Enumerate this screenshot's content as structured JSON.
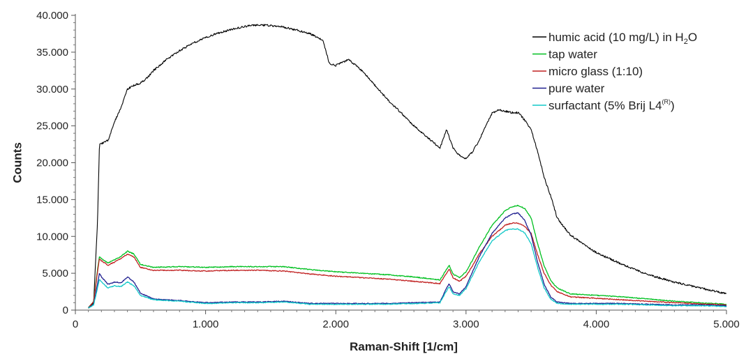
{
  "chart_data": {
    "type": "line",
    "xlabel": "Raman-Shift [1/cm]",
    "ylabel": "Counts",
    "xlim": [
      0,
      5000
    ],
    "ylim": [
      0,
      40000
    ],
    "x_ticks": [
      0,
      1000,
      2000,
      3000,
      4000,
      5000
    ],
    "x_tick_labels": [
      "0",
      "1.000",
      "2.000",
      "3.000",
      "4.000",
      "5.000"
    ],
    "y_ticks": [
      0,
      5000,
      10000,
      15000,
      20000,
      25000,
      30000,
      35000,
      40000
    ],
    "y_tick_labels": [
      "0",
      "5.000",
      "10.000",
      "15.000",
      "20.000",
      "25.000",
      "30.000",
      "35.000",
      "40.000"
    ],
    "grid": false,
    "legend_position": "top-right",
    "series": [
      {
        "name": "humic acid (10 mg/L) in H2O",
        "legend_main": "humic acid (10 mg/L) in H",
        "legend_sub": "2",
        "legend_tail": "O",
        "color": "#000000",
        "x": [
          100,
          140,
          170,
          185,
          200,
          250,
          300,
          350,
          400,
          450,
          500,
          550,
          600,
          700,
          800,
          900,
          1000,
          1100,
          1200,
          1300,
          1400,
          1500,
          1600,
          1700,
          1800,
          1900,
          1950,
          2000,
          2100,
          2200,
          2300,
          2400,
          2500,
          2600,
          2700,
          2800,
          2850,
          2880,
          2900,
          2950,
          3000,
          3050,
          3100,
          3150,
          3200,
          3250,
          3300,
          3350,
          3400,
          3450,
          3500,
          3550,
          3600,
          3650,
          3700,
          3800,
          3900,
          4000,
          4200,
          4400,
          4600,
          4800,
          5000
        ],
        "y": [
          300,
          1000,
          12000,
          22500,
          22600,
          23000,
          25500,
          27500,
          30000,
          30500,
          30800,
          31500,
          32500,
          34000,
          35200,
          36200,
          37000,
          37600,
          38100,
          38500,
          38700,
          38600,
          38400,
          38000,
          37500,
          36700,
          33500,
          33200,
          34000,
          32500,
          30500,
          28500,
          26800,
          25000,
          23500,
          22000,
          24500,
          23000,
          22000,
          21000,
          20500,
          21500,
          23000,
          25000,
          26700,
          27200,
          27000,
          26800,
          26800,
          25800,
          24500,
          21500,
          18000,
          15500,
          12500,
          10200,
          9000,
          7800,
          6200,
          4800,
          3800,
          3000,
          2200
        ]
      },
      {
        "name": "tap water",
        "legend_main": "tap water",
        "legend_sub": "",
        "legend_tail": "",
        "color": "#00c020",
        "x": [
          100,
          140,
          170,
          185,
          200,
          250,
          300,
          350,
          400,
          450,
          500,
          600,
          800,
          1000,
          1200,
          1400,
          1600,
          1800,
          2000,
          2200,
          2400,
          2600,
          2800,
          2850,
          2870,
          2900,
          2950,
          3000,
          3050,
          3100,
          3200,
          3300,
          3350,
          3400,
          3450,
          3500,
          3550,
          3600,
          3650,
          3700,
          3800,
          4000,
          4200,
          4400,
          4600,
          4800,
          5000
        ],
        "y": [
          300,
          1200,
          5500,
          7300,
          7000,
          6400,
          6800,
          7300,
          8000,
          7600,
          6200,
          5800,
          5900,
          5800,
          5900,
          5900,
          5900,
          5500,
          5200,
          5000,
          4800,
          4500,
          4100,
          5500,
          6100,
          4900,
          4400,
          5200,
          6800,
          8500,
          11500,
          13500,
          14000,
          14200,
          13800,
          12500,
          9000,
          6000,
          4000,
          3000,
          2200,
          2000,
          1800,
          1500,
          1200,
          1000,
          800
        ]
      },
      {
        "name": "micro glass (1:10)",
        "legend_main": "micro glass (1:10)",
        "legend_sub": "",
        "legend_tail": "",
        "color": "#c02020",
        "x": [
          100,
          140,
          170,
          185,
          200,
          250,
          300,
          350,
          400,
          450,
          500,
          600,
          800,
          1000,
          1200,
          1400,
          1600,
          1800,
          2000,
          2200,
          2400,
          2600,
          2800,
          2850,
          2870,
          2900,
          2950,
          3000,
          3050,
          3100,
          3200,
          3300,
          3350,
          3400,
          3450,
          3500,
          3550,
          3600,
          3650,
          3700,
          3800,
          4000,
          4200,
          4400,
          4600,
          4800,
          5000
        ],
        "y": [
          300,
          1100,
          5200,
          7000,
          6700,
          6100,
          6500,
          7000,
          7600,
          7200,
          5800,
          5400,
          5400,
          5300,
          5400,
          5400,
          5300,
          4900,
          4600,
          4400,
          4200,
          3900,
          3600,
          5000,
          5600,
          4400,
          3900,
          4600,
          6000,
          7600,
          10000,
          11500,
          11800,
          11800,
          11400,
          10400,
          7500,
          5000,
          3400,
          2500,
          1800,
          1600,
          1400,
          1200,
          1000,
          850,
          700
        ]
      },
      {
        "name": "pure water",
        "legend_main": "pure water",
        "legend_sub": "",
        "legend_tail": "",
        "color": "#202090",
        "x": [
          100,
          140,
          170,
          185,
          200,
          250,
          300,
          350,
          400,
          450,
          500,
          600,
          800,
          1000,
          1200,
          1400,
          1600,
          1800,
          2000,
          2200,
          2400,
          2600,
          2800,
          2850,
          2870,
          2900,
          2950,
          3000,
          3050,
          3100,
          3200,
          3300,
          3350,
          3400,
          3450,
          3500,
          3550,
          3600,
          3650,
          3700,
          3800,
          4000,
          4200,
          4400,
          4600,
          4800,
          5000
        ],
        "y": [
          300,
          800,
          3500,
          5000,
          4500,
          3500,
          3800,
          3700,
          4500,
          3800,
          2300,
          1500,
          1300,
          1000,
          1100,
          1100,
          1200,
          900,
          900,
          900,
          900,
          1000,
          1100,
          3000,
          3600,
          2500,
          2200,
          3200,
          5200,
          7200,
          10400,
          12500,
          13000,
          13200,
          12200,
          10200,
          6500,
          3500,
          1800,
          1100,
          900,
          900,
          900,
          800,
          700,
          700,
          600
        ]
      },
      {
        "name": "surfactant (5% Brij L4(R))",
        "legend_main": "surfactant (5% Brij L4",
        "legend_sub": "(R)",
        "legend_tail": ")",
        "color": "#10c8c8",
        "x": [
          100,
          140,
          170,
          185,
          200,
          250,
          300,
          350,
          400,
          450,
          500,
          600,
          800,
          1000,
          1200,
          1400,
          1600,
          1800,
          2000,
          2200,
          2400,
          2600,
          2800,
          2850,
          2870,
          2900,
          2950,
          3000,
          3050,
          3100,
          3200,
          3300,
          3350,
          3400,
          3450,
          3500,
          3550,
          3600,
          3650,
          3700,
          3800,
          4000,
          4200,
          4400,
          4600,
          4800,
          5000
        ],
        "y": [
          300,
          700,
          3000,
          4200,
          3800,
          3000,
          3300,
          3200,
          3800,
          3300,
          2000,
          1400,
          1200,
          900,
          1000,
          1000,
          1100,
          800,
          800,
          800,
          800,
          900,
          1000,
          2600,
          3200,
          2200,
          2000,
          2900,
          4700,
          6500,
          9400,
          10800,
          11000,
          11000,
          10500,
          9000,
          5800,
          3000,
          1500,
          900,
          800,
          800,
          800,
          700,
          600,
          600,
          500
        ]
      }
    ]
  }
}
